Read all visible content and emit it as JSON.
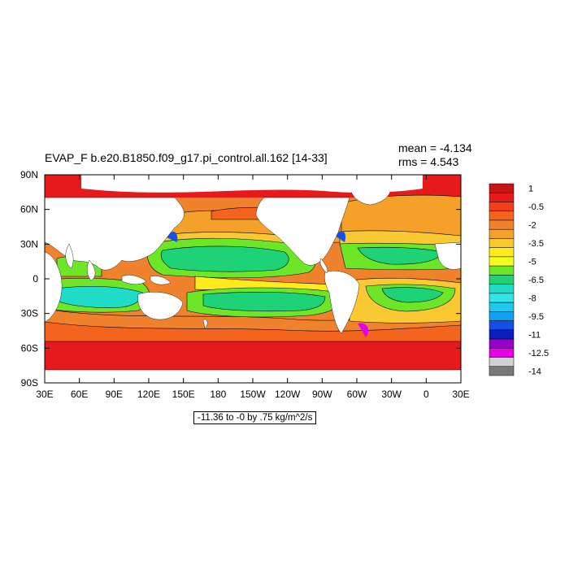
{
  "title": "EVAP_F b.e20.B1850.f09_g17.pi_control.all.162 [14-33]",
  "stats": {
    "mean": "mean = -4.134",
    "rms": "rms = 4.543"
  },
  "footer": "-11.36 to -0 by .75 kg/m^2/s",
  "x_ticks": [
    "30E",
    "60E",
    "90E",
    "120E",
    "150E",
    "180",
    "150W",
    "120W",
    "90W",
    "60W",
    "30W",
    "0",
    "30E"
  ],
  "y_ticks": [
    "90N",
    "60N",
    "30N",
    "0",
    "30S",
    "60S",
    "90S"
  ],
  "colorbar": {
    "colors": [
      "#c81414",
      "#e61a1a",
      "#f53e14",
      "#f5641e",
      "#f0822d",
      "#f5a028",
      "#fac832",
      "#ffeb1e",
      "#f5ff1e",
      "#6ee628",
      "#1ed278",
      "#1edcc8",
      "#32e6e6",
      "#1ec8f0",
      "#14a0f0",
      "#1450e6",
      "#0a1ebe",
      "#9600c8",
      "#e600e6",
      "#d2d2d2",
      "#787878"
    ],
    "labels": [
      "1",
      "-0.5",
      "-2",
      "-3.5",
      "-5",
      "-6.5",
      "-8",
      "-9.5",
      "-11",
      "-12.5",
      "-14"
    ]
  }
}
